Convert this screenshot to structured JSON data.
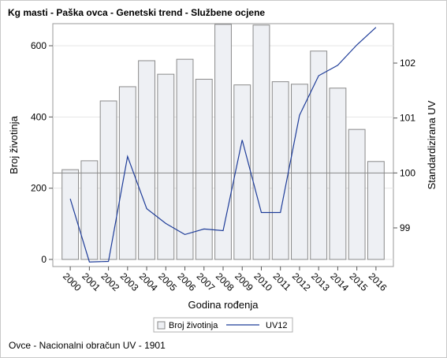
{
  "title": "Kg masti - Paška ovca - Genetski trend - Službene ocjene",
  "footnote": "Ovce - Nacionalni obračun UV - 1901",
  "chart_data": {
    "type": "bar",
    "categories": [
      "2000",
      "2001",
      "2002",
      "2003",
      "2004",
      "2005",
      "2006",
      "2007",
      "2008",
      "2009",
      "2010",
      "2011",
      "2012",
      "2013",
      "2014",
      "2015",
      "2016"
    ],
    "series": [
      {
        "name": "Broj životinja",
        "type": "bar",
        "axis": "left",
        "values": [
          252,
          277,
          445,
          485,
          558,
          520,
          562,
          506,
          660,
          490,
          658,
          499,
          492,
          585,
          481,
          365,
          275
        ],
        "color": "#eef0f4",
        "stroke": "#8a8a8a"
      },
      {
        "name": "UV12",
        "type": "line",
        "axis": "right",
        "values": [
          99.53,
          98.38,
          98.39,
          100.3,
          99.35,
          99.08,
          98.88,
          98.98,
          98.95,
          100.6,
          99.28,
          99.28,
          101.05,
          101.77,
          101.96,
          102.33,
          102.65
        ],
        "color": "#1f3d99"
      }
    ],
    "xlabel": "Godina rođenja",
    "ylabel": "Broj životinja",
    "y2label": "Standardizirana UV",
    "ylim": [
      0,
      680
    ],
    "y2lim": [
      98.35,
      102.75
    ],
    "yticks": [
      0,
      200,
      400,
      600
    ],
    "y2ticks": [
      99,
      100,
      101,
      102
    ],
    "reference_line_y2": 100,
    "grid": true,
    "legend_position": "bottom"
  }
}
